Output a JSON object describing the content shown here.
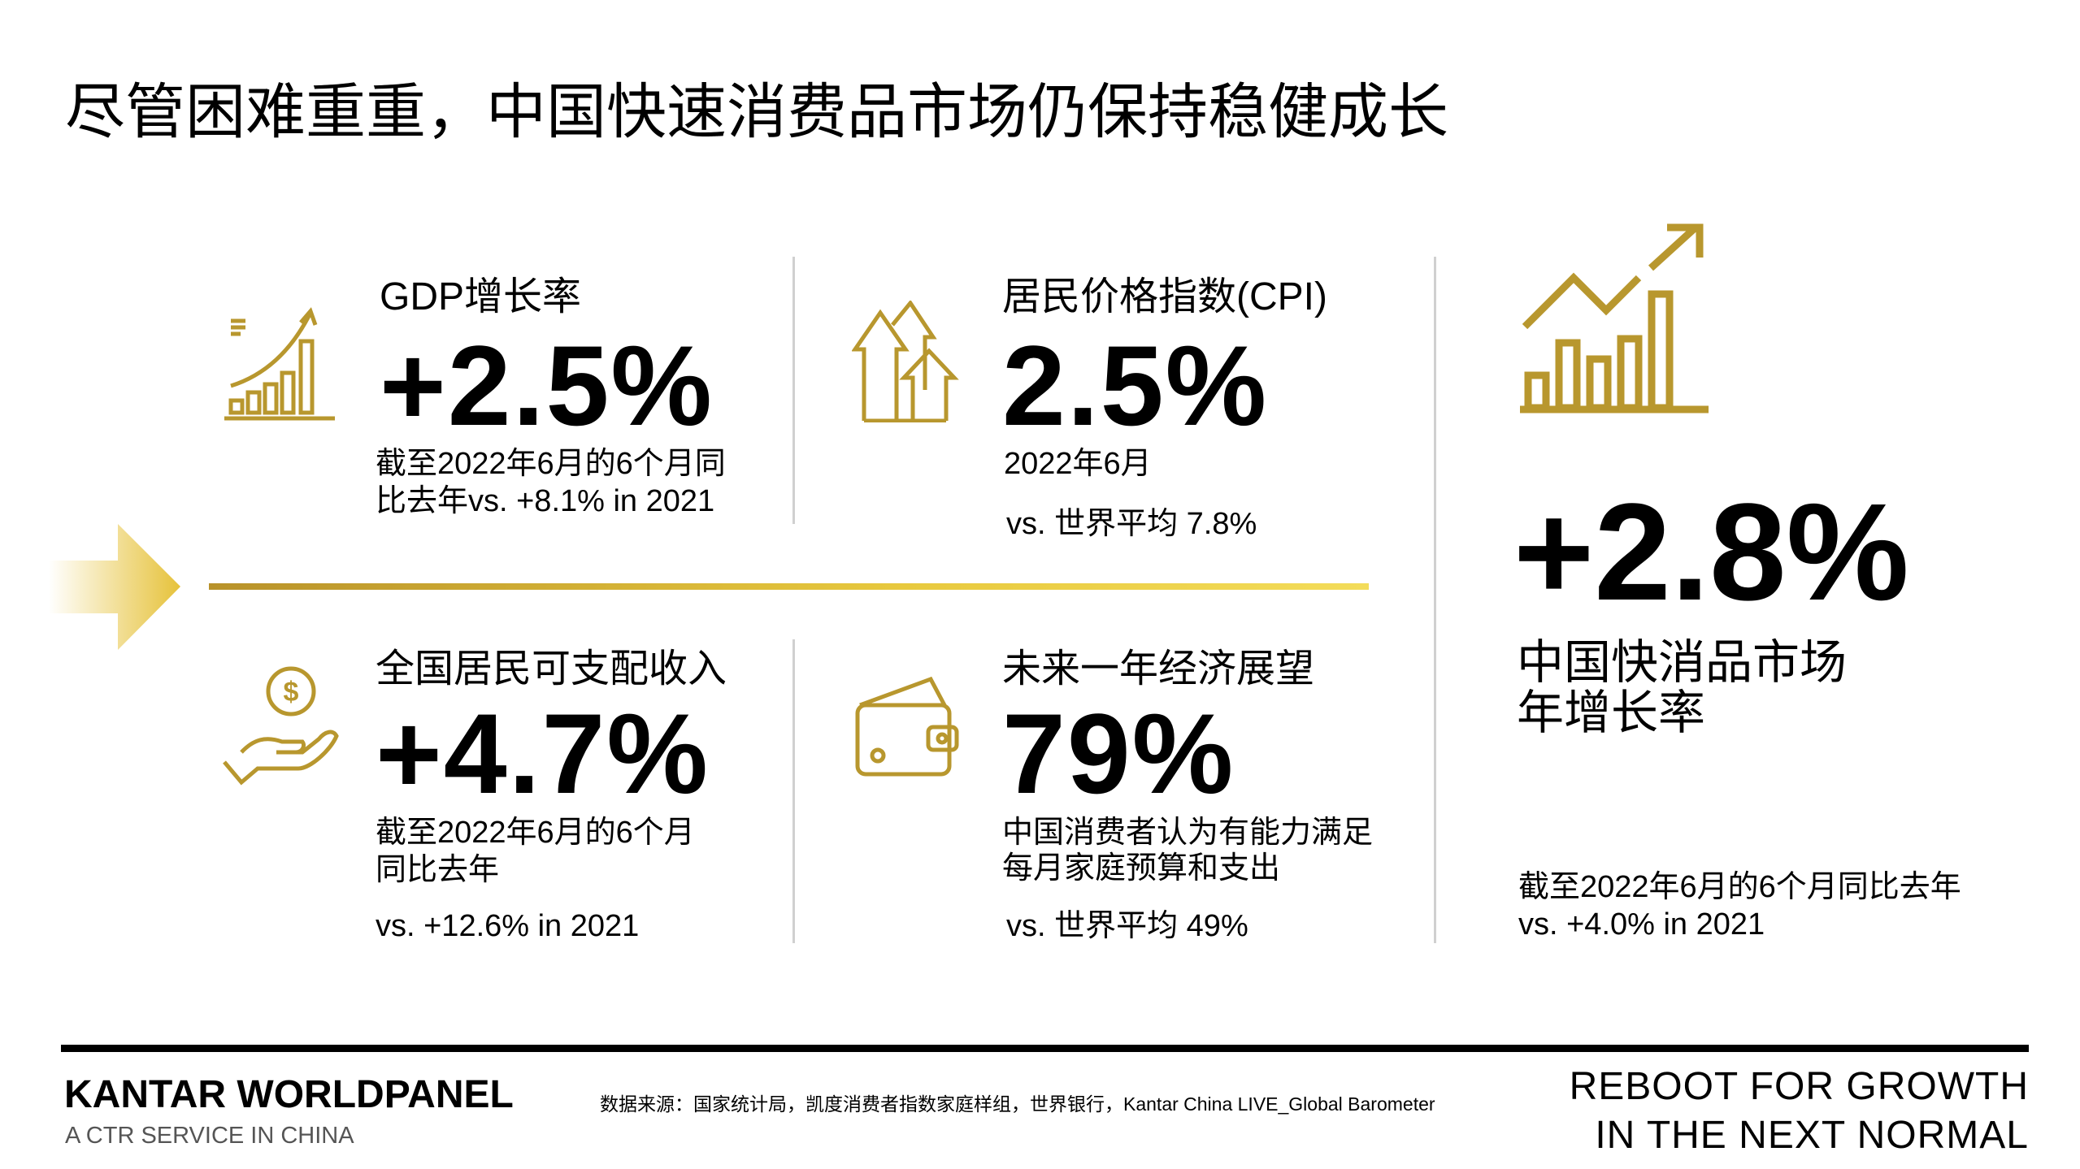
{
  "title": "尽管困难重重，中国快速消费品市场仍保持稳健成长",
  "metrics": [
    {
      "label": "GDP增长率",
      "value": "+2.5%",
      "sub": [
        "截至2022年6月的6个月同",
        "比去年vs. +8.1% in 2021"
      ],
      "icon": "growth-chart-icon"
    },
    {
      "label": "居民价格指数(CPI)",
      "value": "2.5%",
      "sub": [
        "2022年6月"
      ],
      "vs": "vs. 世界平均 7.8%",
      "icon": "up-arrows-icon"
    },
    {
      "label": "全国居民可支配收入",
      "value": "+4.7%",
      "sub": [
        "截至2022年6月的6个月",
        "同比去年"
      ],
      "vs": "vs. +12.6% in 2021",
      "icon": "hand-coin-icon"
    },
    {
      "label": "未来一年经济展望",
      "value": "79%",
      "sub": [
        "中国消费者认为有能力满足",
        "每月家庭预算和支出"
      ],
      "vs": "vs. 世界平均 49%",
      "icon": "wallet-icon"
    }
  ],
  "highlight": {
    "value": "+2.8%",
    "label": [
      "中国快消品市场",
      "年增长率"
    ],
    "note": [
      "截至2022年6月的6个月同比去年",
      "vs. +4.0% in 2021"
    ],
    "icon": "growth-bars-icon"
  },
  "footer": {
    "brand": "KANTAR WORLDPANEL",
    "brand_sub": "A CTR SERVICE IN CHINA",
    "source": "数据来源：国家统计局，凯度消费者指数家庭样组，世界银行，Kantar China LIVE_Global Barometer",
    "tagline": [
      "REBOOT FOR GROWTH",
      "IN THE NEXT NORMAL"
    ]
  },
  "colors": {
    "gold": "#b8972e",
    "accent_yellow": "#f3dc5a"
  }
}
